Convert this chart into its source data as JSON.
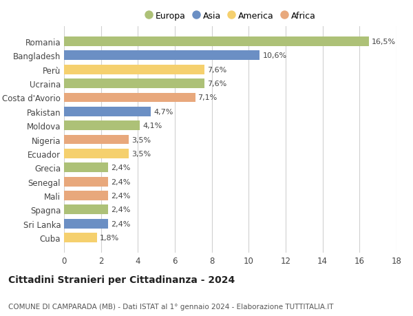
{
  "countries": [
    "Romania",
    "Bangladesh",
    "Perù",
    "Ucraina",
    "Costa d'Avorio",
    "Pakistan",
    "Moldova",
    "Nigeria",
    "Ecuador",
    "Grecia",
    "Senegal",
    "Mali",
    "Spagna",
    "Sri Lanka",
    "Cuba"
  ],
  "values": [
    16.5,
    10.6,
    7.6,
    7.6,
    7.1,
    4.7,
    4.1,
    3.5,
    3.5,
    2.4,
    2.4,
    2.4,
    2.4,
    2.4,
    1.8
  ],
  "labels": [
    "16,5%",
    "10,6%",
    "7,6%",
    "7,6%",
    "7,1%",
    "4,7%",
    "4,1%",
    "3,5%",
    "3,5%",
    "2,4%",
    "2,4%",
    "2,4%",
    "2,4%",
    "2,4%",
    "1,8%"
  ],
  "continents": [
    "Europa",
    "Asia",
    "America",
    "Europa",
    "Africa",
    "Asia",
    "Europa",
    "Africa",
    "America",
    "Europa",
    "Africa",
    "Africa",
    "Europa",
    "Asia",
    "America"
  ],
  "continent_colors": {
    "Europa": "#adc177",
    "Asia": "#6b8fc4",
    "America": "#f5d06e",
    "Africa": "#e8a87c"
  },
  "legend_order": [
    "Europa",
    "Asia",
    "America",
    "Africa"
  ],
  "xlim": [
    0,
    18
  ],
  "xticks": [
    0,
    2,
    4,
    6,
    8,
    10,
    12,
    14,
    16,
    18
  ],
  "title": "Cittadini Stranieri per Cittadinanza - 2024",
  "subtitle": "COMUNE DI CAMPARADA (MB) - Dati ISTAT al 1° gennaio 2024 - Elaborazione TUTTITALIA.IT",
  "background_color": "#ffffff",
  "grid_color": "#d0d0d0",
  "bar_height": 0.68,
  "title_fontsize": 10,
  "subtitle_fontsize": 7.5,
  "tick_fontsize": 8.5,
  "label_fontsize": 8,
  "legend_fontsize": 9
}
